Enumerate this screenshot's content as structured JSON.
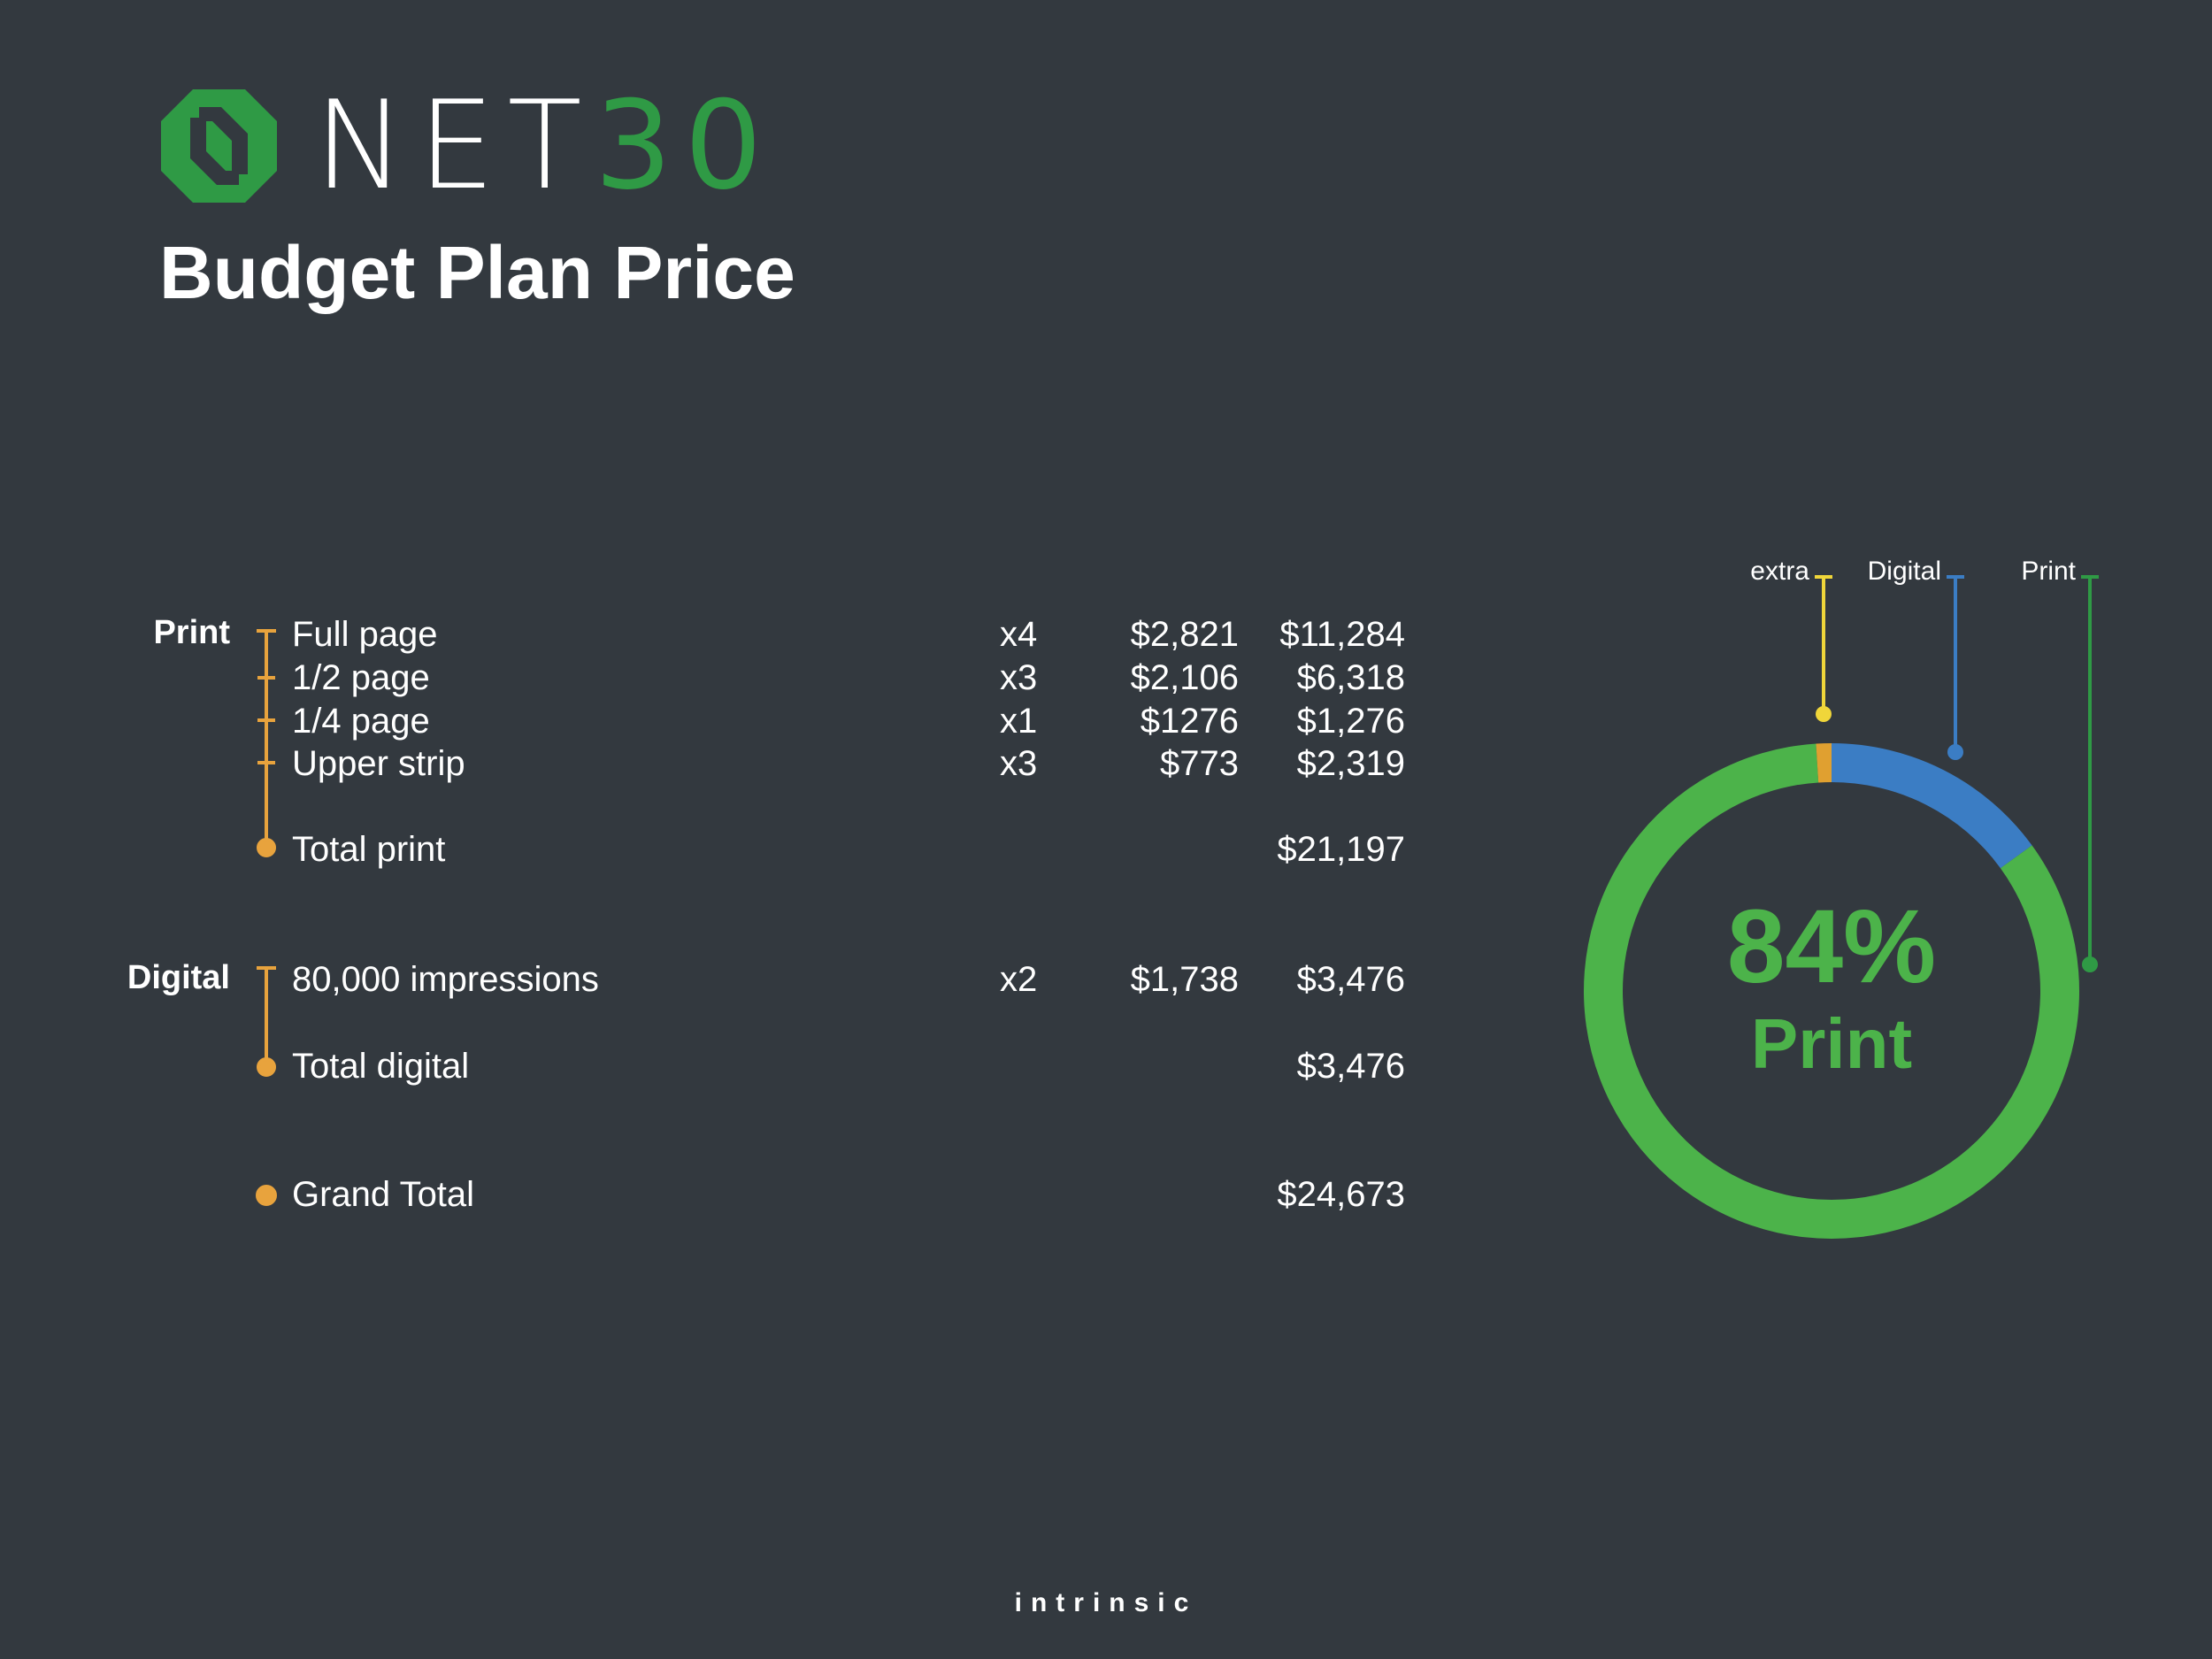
{
  "header": {
    "logo_white": "NET",
    "logo_green": "30",
    "title": "Budget Plan Price"
  },
  "colors": {
    "background": "#33393f",
    "accent_orange": "#e8a33d",
    "print_green": "#4cb34a",
    "digital_blue": "#3b7dc4",
    "extra_orange": "#e0a030",
    "leg_yellow": "#f0d63a",
    "logo_green": "#2f9a45"
  },
  "table": {
    "print": {
      "label": "Print",
      "rows": [
        {
          "item": "Full page",
          "qty": "x4",
          "unit": "$2,821",
          "total": "$11,284"
        },
        {
          "item": "1/2 page",
          "qty": "x3",
          "unit": "$2,106",
          "total": "$6,318"
        },
        {
          "item": "1/4 page",
          "qty": "x1",
          "unit": "$1276",
          "total": "$1,276"
        },
        {
          "item": "Upper strip",
          "qty": "x3",
          "unit": "$773",
          "total": "$2,319"
        }
      ],
      "total_label": "Total print",
      "total_value": "$21,197"
    },
    "digital": {
      "label": "Digital",
      "rows": [
        {
          "item": "80,000 impressions",
          "qty": "x2",
          "unit": "$1,738",
          "total": "$3,476"
        }
      ],
      "total_label": "Total digital",
      "total_value": "$3,476"
    },
    "grand_total_label": "Grand Total",
    "grand_total_value": "$24,673"
  },
  "chart_data": {
    "type": "pie",
    "donut": true,
    "categories": [
      "extra",
      "Digital",
      "Print"
    ],
    "values": [
      1,
      15,
      84
    ],
    "colors": [
      "#e0a030",
      "#3b7dc4",
      "#4cb34a"
    ],
    "center_value": "84%",
    "center_label": "Print",
    "legend_placement": "top"
  },
  "footer": {
    "brand": "intrinsic"
  }
}
